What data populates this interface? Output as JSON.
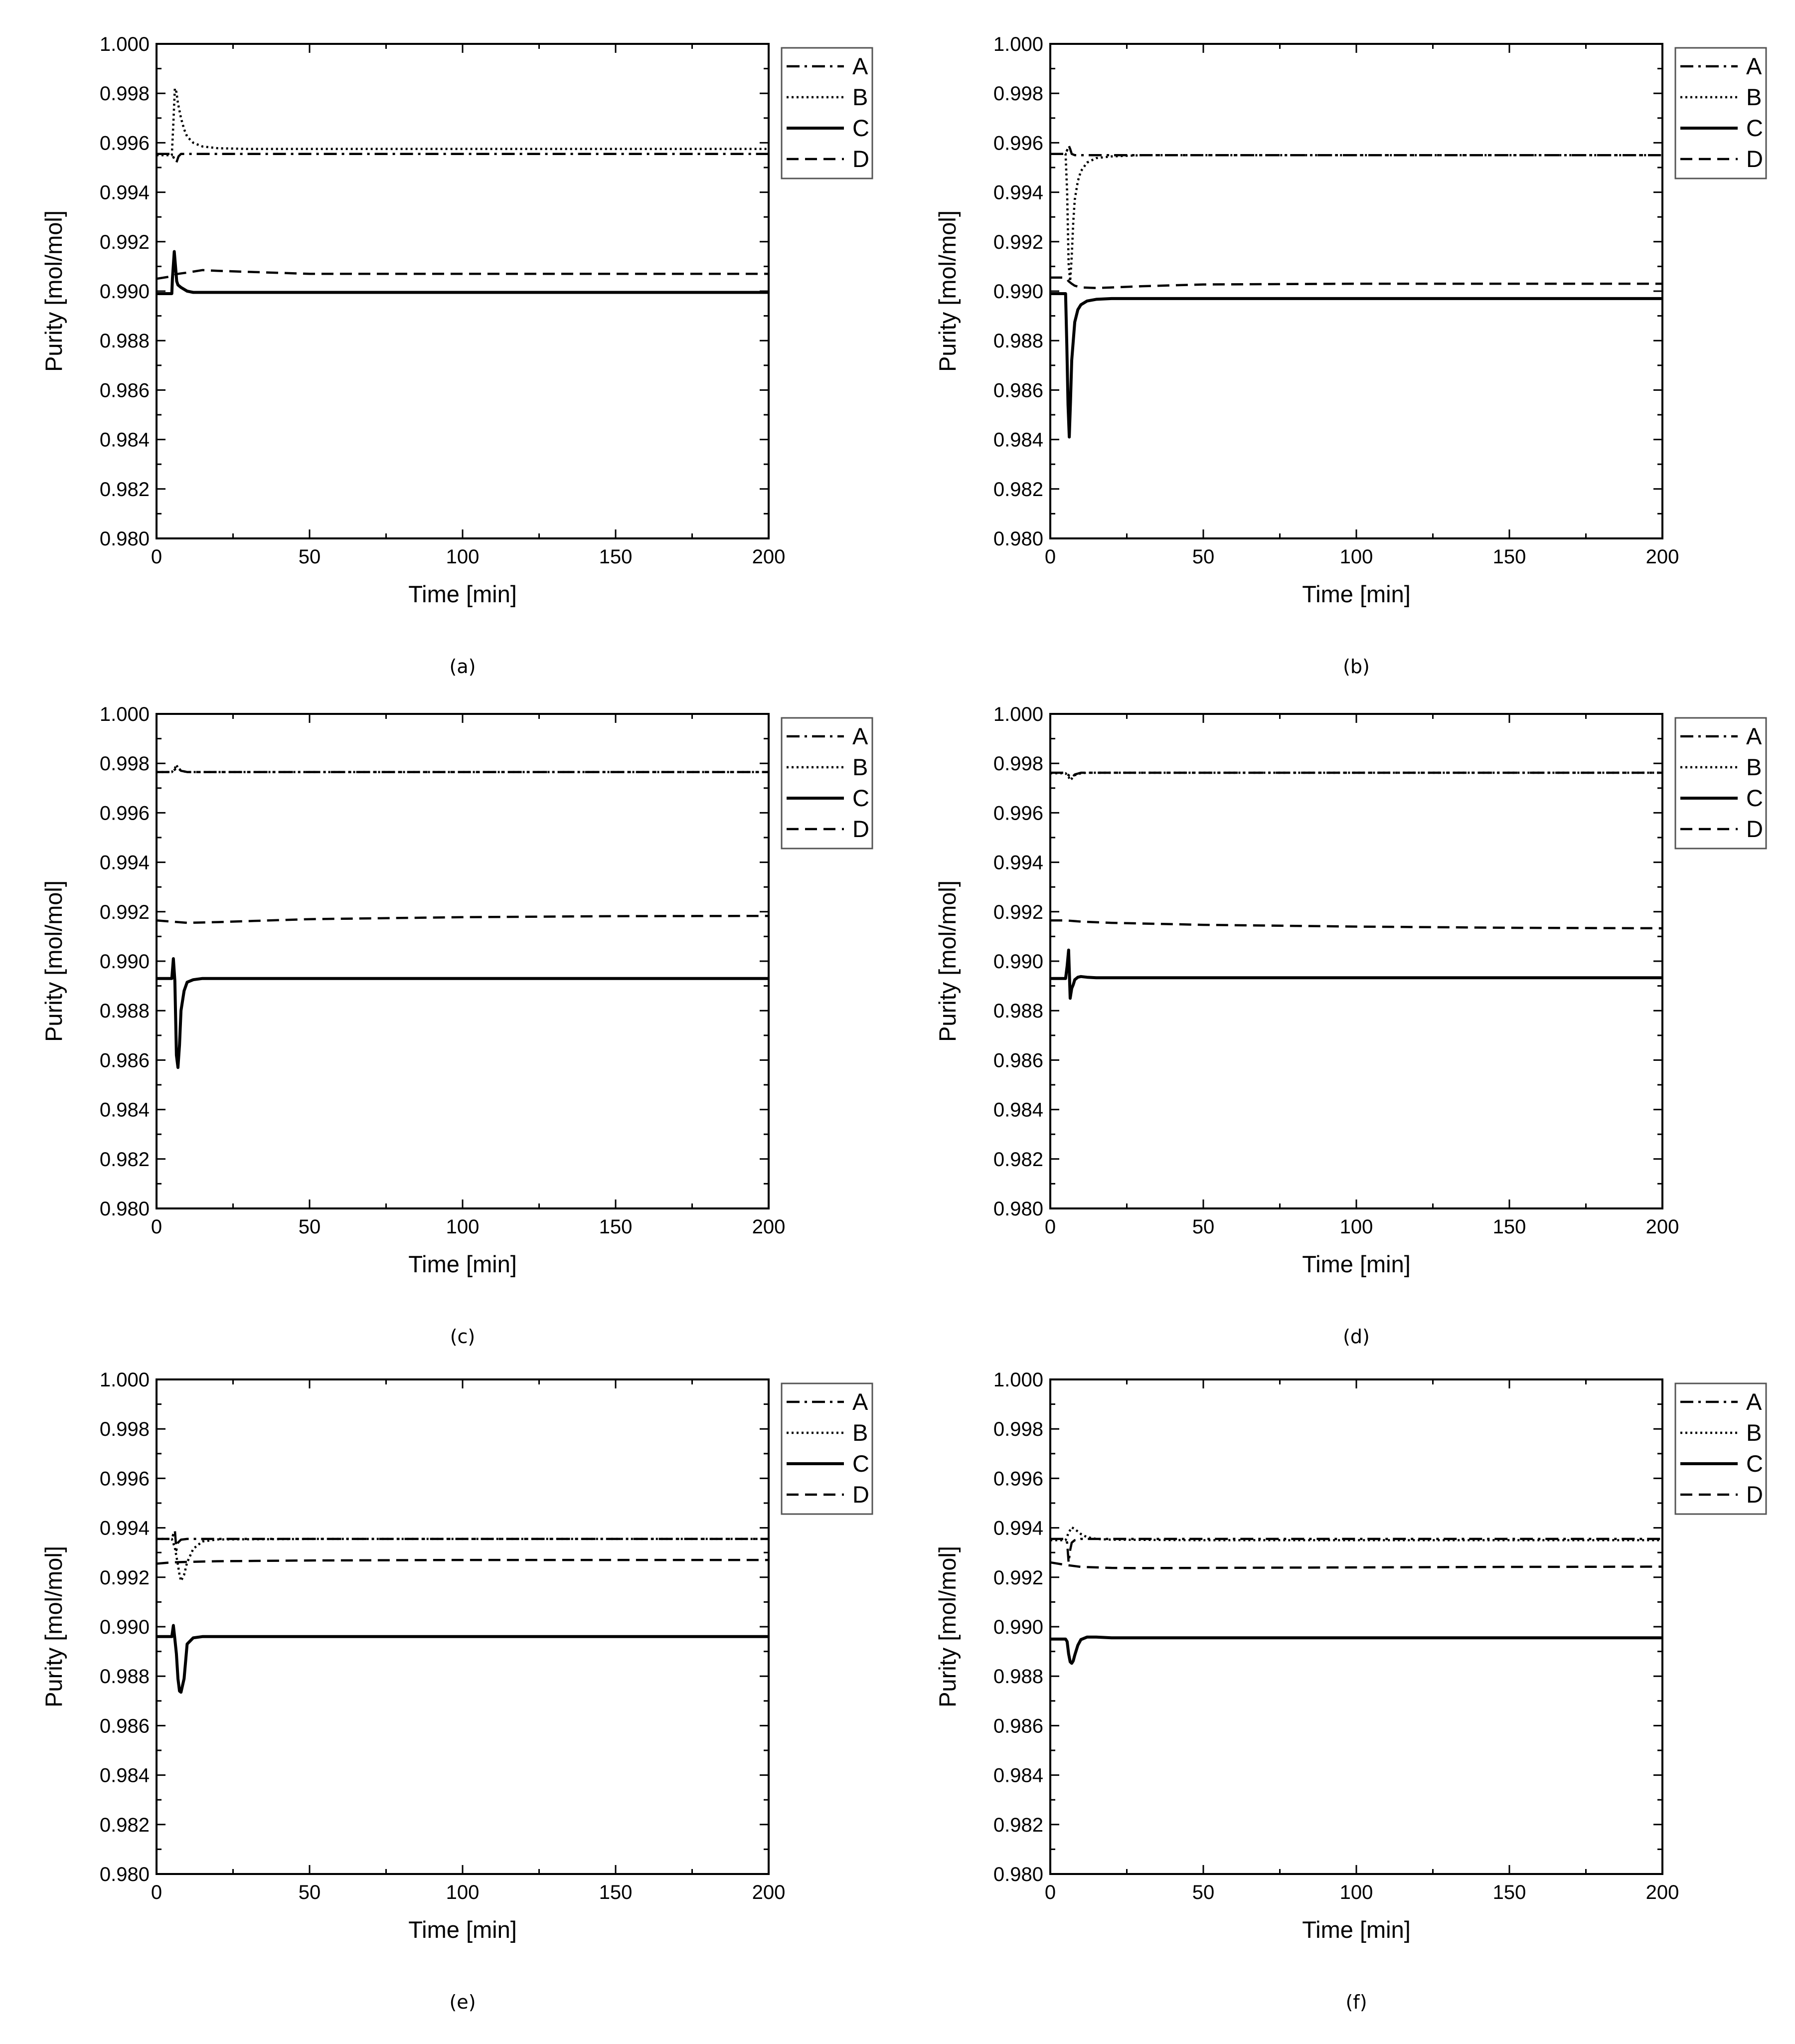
{
  "chart_data": [
    {
      "type": "line",
      "panel_label": "(a)",
      "xlabel": "Time [min]",
      "ylabel": "Purity [mol/mol]",
      "xlim": [
        0,
        200
      ],
      "ylim": [
        0.98,
        1.0
      ],
      "xticks": [
        "0",
        "50",
        "100",
        "150",
        "200"
      ],
      "yticks": [
        "0.980",
        "0.982",
        "0.984",
        "0.986",
        "0.988",
        "0.990",
        "0.992",
        "0.994",
        "0.996",
        "0.998",
        "1.000"
      ],
      "legend_position": "outside-right-top",
      "series": [
        {
          "name": "A",
          "style": "dashdot",
          "x": [
            0,
            5,
            5.8,
            6.5,
            7.2,
            8,
            10,
            15,
            20,
            50,
            100,
            150,
            200
          ],
          "y": [
            0.99555,
            0.99555,
            0.99535,
            0.9952,
            0.99545,
            0.99555,
            0.99555,
            0.99555,
            0.99555,
            0.99555,
            0.99555,
            0.99555,
            0.99555
          ]
        },
        {
          "name": "B",
          "style": "dotted",
          "x": [
            0,
            5,
            5.5,
            6,
            6.5,
            7,
            8,
            9,
            10,
            12,
            15,
            20,
            30,
            50,
            100,
            150,
            200
          ],
          "y": [
            0.9955,
            0.9955,
            0.9968,
            0.9982,
            0.99805,
            0.9976,
            0.997,
            0.99655,
            0.99625,
            0.996,
            0.99585,
            0.99578,
            0.99575,
            0.99575,
            0.99575,
            0.99575,
            0.99575
          ]
        },
        {
          "name": "C",
          "style": "solid",
          "x": [
            0,
            5,
            5.2,
            5.8,
            6.2,
            6.6,
            7,
            8,
            10,
            12,
            20,
            50,
            100,
            150,
            200
          ],
          "y": [
            0.9899,
            0.9899,
            0.9905,
            0.9916,
            0.991,
            0.9904,
            0.99025,
            0.99015,
            0.99,
            0.98995,
            0.98995,
            0.98995,
            0.98995,
            0.98995,
            0.98995
          ]
        },
        {
          "name": "D",
          "style": "dashed",
          "x": [
            0,
            5,
            7,
            10,
            15,
            20,
            50,
            100,
            150,
            200
          ],
          "y": [
            0.9905,
            0.9906,
            0.9907,
            0.99075,
            0.99085,
            0.99082,
            0.9907,
            0.9907,
            0.9907,
            0.9907
          ]
        }
      ]
    },
    {
      "type": "line",
      "panel_label": "(b)",
      "xlabel": "Time [min]",
      "ylabel": "Purity [mol/mol]",
      "xlim": [
        0,
        200
      ],
      "ylim": [
        0.98,
        1.0
      ],
      "xticks": [
        "0",
        "50",
        "100",
        "150",
        "200"
      ],
      "yticks": [
        "0.980",
        "0.982",
        "0.984",
        "0.986",
        "0.988",
        "0.990",
        "0.992",
        "0.994",
        "0.996",
        "0.998",
        "1.000"
      ],
      "legend_position": "outside-right-top",
      "series": [
        {
          "name": "A",
          "style": "dashdot",
          "x": [
            0,
            5,
            5.5,
            6,
            6.5,
            7,
            8,
            10,
            20,
            50,
            100,
            150,
            200
          ],
          "y": [
            0.99555,
            0.99555,
            0.9957,
            0.9959,
            0.99575,
            0.99555,
            0.9955,
            0.9955,
            0.9955,
            0.9955,
            0.9955,
            0.9955,
            0.9955
          ]
        },
        {
          "name": "B",
          "style": "dotted",
          "x": [
            0,
            5,
            5.5,
            6,
            6.5,
            7,
            7.5,
            8,
            9,
            10,
            12,
            15,
            20,
            30,
            50,
            100,
            150,
            200
          ],
          "y": [
            0.99555,
            0.99555,
            0.994,
            0.9911,
            0.9904,
            0.9914,
            0.9928,
            0.9937,
            0.99445,
            0.99485,
            0.9952,
            0.99538,
            0.99545,
            0.9955,
            0.9955,
            0.9955,
            0.9955,
            0.9955
          ]
        },
        {
          "name": "C",
          "style": "solid",
          "x": [
            0,
            5,
            5.4,
            5.8,
            6.2,
            6.6,
            7,
            8,
            9,
            10,
            12,
            15,
            20,
            30,
            50,
            100,
            150,
            200
          ],
          "y": [
            0.9899,
            0.9899,
            0.9878,
            0.9854,
            0.9841,
            0.9855,
            0.9872,
            0.98875,
            0.98925,
            0.98945,
            0.9896,
            0.98967,
            0.9897,
            0.9897,
            0.9897,
            0.9897,
            0.9897,
            0.9897
          ]
        },
        {
          "name": "D",
          "style": "dashed",
          "x": [
            0,
            5,
            6,
            7,
            8,
            10,
            15,
            20,
            30,
            50,
            100,
            150,
            200
          ],
          "y": [
            0.99055,
            0.99055,
            0.9904,
            0.9903,
            0.99022,
            0.99015,
            0.99013,
            0.99015,
            0.9902,
            0.99027,
            0.9903,
            0.9903,
            0.9903
          ]
        }
      ]
    },
    {
      "type": "line",
      "panel_label": "(c)",
      "xlabel": "Time [min]",
      "ylabel": "Purity [mol/mol]",
      "xlim": [
        0,
        200
      ],
      "ylim": [
        0.98,
        1.0
      ],
      "xticks": [
        "0",
        "50",
        "100",
        "150",
        "200"
      ],
      "yticks": [
        "0.980",
        "0.982",
        "0.984",
        "0.986",
        "0.988",
        "0.990",
        "0.992",
        "0.994",
        "0.996",
        "0.998",
        "1.000"
      ],
      "legend_position": "outside-right-top",
      "series": [
        {
          "name": "A",
          "style": "dashdot",
          "x": [
            0,
            5,
            6,
            7,
            8,
            10,
            50,
            100,
            150,
            200
          ],
          "y": [
            0.99765,
            0.99765,
            0.99775,
            0.99785,
            0.9977,
            0.99765,
            0.99765,
            0.99765,
            0.99765,
            0.99765
          ]
        },
        {
          "name": "B",
          "style": "dotted",
          "x": [
            0,
            5,
            6,
            6.5,
            7,
            8,
            10,
            50,
            100,
            150,
            200
          ],
          "y": [
            0.99765,
            0.99765,
            0.9978,
            0.99795,
            0.9978,
            0.9977,
            0.99765,
            0.99765,
            0.99765,
            0.99765,
            0.99765
          ]
        },
        {
          "name": "C",
          "style": "solid",
          "x": [
            0,
            5,
            5.5,
            6,
            6.5,
            7,
            7.5,
            8,
            9,
            10,
            12,
            15,
            20,
            50,
            100,
            150,
            200
          ],
          "y": [
            0.9893,
            0.9893,
            0.9901,
            0.9892,
            0.9862,
            0.9857,
            0.9866,
            0.988,
            0.9888,
            0.98915,
            0.98925,
            0.9893,
            0.9893,
            0.9893,
            0.9893,
            0.9893,
            0.9893
          ]
        },
        {
          "name": "D",
          "style": "dashed",
          "x": [
            0,
            5,
            10,
            20,
            30,
            50,
            100,
            150,
            200
          ],
          "y": [
            0.99165,
            0.9916,
            0.99155,
            0.99158,
            0.99162,
            0.9917,
            0.99178,
            0.99182,
            0.99183
          ]
        }
      ]
    },
    {
      "type": "line",
      "panel_label": "(d)",
      "xlabel": "Time [min]",
      "ylabel": "Purity [mol/mol]",
      "xlim": [
        0,
        200
      ],
      "ylim": [
        0.98,
        1.0
      ],
      "xticks": [
        "0",
        "50",
        "100",
        "150",
        "200"
      ],
      "yticks": [
        "0.980",
        "0.982",
        "0.984",
        "0.986",
        "0.988",
        "0.990",
        "0.992",
        "0.994",
        "0.996",
        "0.998",
        "1.000"
      ],
      "legend_position": "outside-right-top",
      "series": [
        {
          "name": "A",
          "style": "dashdot",
          "x": [
            0,
            5,
            6,
            7,
            8,
            10,
            50,
            100,
            150,
            200
          ],
          "y": [
            0.99762,
            0.99762,
            0.99752,
            0.99742,
            0.99755,
            0.99762,
            0.99762,
            0.99762,
            0.99762,
            0.99762
          ]
        },
        {
          "name": "B",
          "style": "dotted",
          "x": [
            0,
            5,
            6,
            6.5,
            7,
            8,
            10,
            12,
            50,
            100,
            150,
            200
          ],
          "y": [
            0.9976,
            0.9976,
            0.99745,
            0.99732,
            0.99738,
            0.99752,
            0.9976,
            0.99762,
            0.99762,
            0.99762,
            0.99762,
            0.99762
          ]
        },
        {
          "name": "C",
          "style": "solid",
          "x": [
            0,
            5,
            5.5,
            6,
            6.5,
            7,
            7.5,
            8,
            9,
            10,
            12,
            15,
            20,
            50,
            100,
            150,
            200
          ],
          "y": [
            0.9893,
            0.9893,
            0.9898,
            0.99045,
            0.9885,
            0.9889,
            0.98905,
            0.98925,
            0.98935,
            0.98938,
            0.98935,
            0.98933,
            0.98933,
            0.98933,
            0.98933,
            0.98933,
            0.98933
          ]
        },
        {
          "name": "D",
          "style": "dashed",
          "x": [
            0,
            5,
            10,
            20,
            50,
            100,
            150,
            200
          ],
          "y": [
            0.99165,
            0.99165,
            0.9916,
            0.99155,
            0.99147,
            0.9914,
            0.99135,
            0.99133
          ]
        }
      ]
    },
    {
      "type": "line",
      "panel_label": "(e)",
      "xlabel": "Time [min]",
      "ylabel": "Purity [mol/mol]",
      "xlim": [
        0,
        200
      ],
      "ylim": [
        0.98,
        1.0
      ],
      "xticks": [
        "0",
        "50",
        "100",
        "150",
        "200"
      ],
      "yticks": [
        "0.980",
        "0.982",
        "0.984",
        "0.986",
        "0.988",
        "0.990",
        "0.992",
        "0.994",
        "0.996",
        "0.998",
        "1.000"
      ],
      "legend_position": "outside-right-top",
      "series": [
        {
          "name": "A",
          "style": "dashdot",
          "x": [
            0,
            5,
            5.5,
            6,
            6.5,
            7,
            8,
            10,
            50,
            100,
            150,
            200
          ],
          "y": [
            0.99355,
            0.99355,
            0.99375,
            0.9939,
            0.9931,
            0.9934,
            0.99352,
            0.99355,
            0.99355,
            0.99355,
            0.99355,
            0.99355
          ]
        },
        {
          "name": "B",
          "style": "dotted",
          "x": [
            0,
            5,
            6,
            7,
            7.5,
            8,
            9,
            10,
            12,
            15,
            20,
            50,
            100,
            150,
            200
          ],
          "y": [
            0.99355,
            0.99355,
            0.9932,
            0.9925,
            0.9921,
            0.99185,
            0.9921,
            0.9926,
            0.99315,
            0.99345,
            0.99353,
            0.99355,
            0.99355,
            0.99355,
            0.99355
          ]
        },
        {
          "name": "C",
          "style": "solid",
          "x": [
            0,
            5,
            5.5,
            6,
            6.5,
            7,
            7.5,
            8,
            9,
            10,
            12,
            15,
            20,
            50,
            100,
            150,
            200
          ],
          "y": [
            0.9896,
            0.9896,
            0.99005,
            0.9895,
            0.9889,
            0.9879,
            0.9874,
            0.98735,
            0.9879,
            0.9893,
            0.98955,
            0.9896,
            0.9896,
            0.9896,
            0.9896,
            0.9896,
            0.9896
          ]
        },
        {
          "name": "D",
          "style": "dashed",
          "x": [
            0,
            5,
            10,
            20,
            50,
            100,
            150,
            200
          ],
          "y": [
            0.99255,
            0.9926,
            0.99262,
            0.99265,
            0.99268,
            0.9927,
            0.9927,
            0.9927
          ]
        }
      ]
    },
    {
      "type": "line",
      "panel_label": "(f)",
      "xlabel": "Time [min]",
      "ylabel": "Purity [mol/mol]",
      "xlim": [
        0,
        200
      ],
      "ylim": [
        0.98,
        1.0
      ],
      "xticks": [
        "0",
        "50",
        "100",
        "150",
        "200"
      ],
      "yticks": [
        "0.980",
        "0.982",
        "0.984",
        "0.986",
        "0.988",
        "0.990",
        "0.992",
        "0.994",
        "0.996",
        "0.998",
        "1.000"
      ],
      "legend_position": "outside-right-top",
      "series": [
        {
          "name": "A",
          "style": "dashdot",
          "x": [
            0,
            5,
            5.5,
            6,
            6.5,
            7,
            8,
            10,
            50,
            100,
            150,
            200
          ],
          "y": [
            0.99355,
            0.99355,
            0.9934,
            0.9926,
            0.9931,
            0.9934,
            0.9935,
            0.99355,
            0.99355,
            0.99355,
            0.99355,
            0.99355
          ]
        },
        {
          "name": "B",
          "style": "dotted",
          "x": [
            0,
            5,
            6,
            7,
            8,
            9,
            10,
            12,
            15,
            20,
            50,
            100,
            150,
            200
          ],
          "y": [
            0.9935,
            0.9935,
            0.9938,
            0.99402,
            0.99395,
            0.99385,
            0.99375,
            0.99362,
            0.99355,
            0.99352,
            0.9935,
            0.9935,
            0.9935,
            0.9935
          ]
        },
        {
          "name": "C",
          "style": "solid",
          "x": [
            0,
            5,
            5.5,
            6,
            6.5,
            7,
            7.5,
            8,
            9,
            10,
            12,
            15,
            20,
            50,
            100,
            150,
            200
          ],
          "y": [
            0.9895,
            0.9895,
            0.9894,
            0.9889,
            0.98858,
            0.98852,
            0.98862,
            0.98885,
            0.98925,
            0.98948,
            0.98958,
            0.98958,
            0.98955,
            0.98955,
            0.98955,
            0.98955,
            0.98955
          ]
        },
        {
          "name": "D",
          "style": "dashed",
          "x": [
            0,
            5,
            10,
            20,
            30,
            50,
            100,
            150,
            200
          ],
          "y": [
            0.9926,
            0.9925,
            0.99242,
            0.99238,
            0.99237,
            0.99238,
            0.9924,
            0.99242,
            0.99243
          ]
        }
      ]
    }
  ]
}
